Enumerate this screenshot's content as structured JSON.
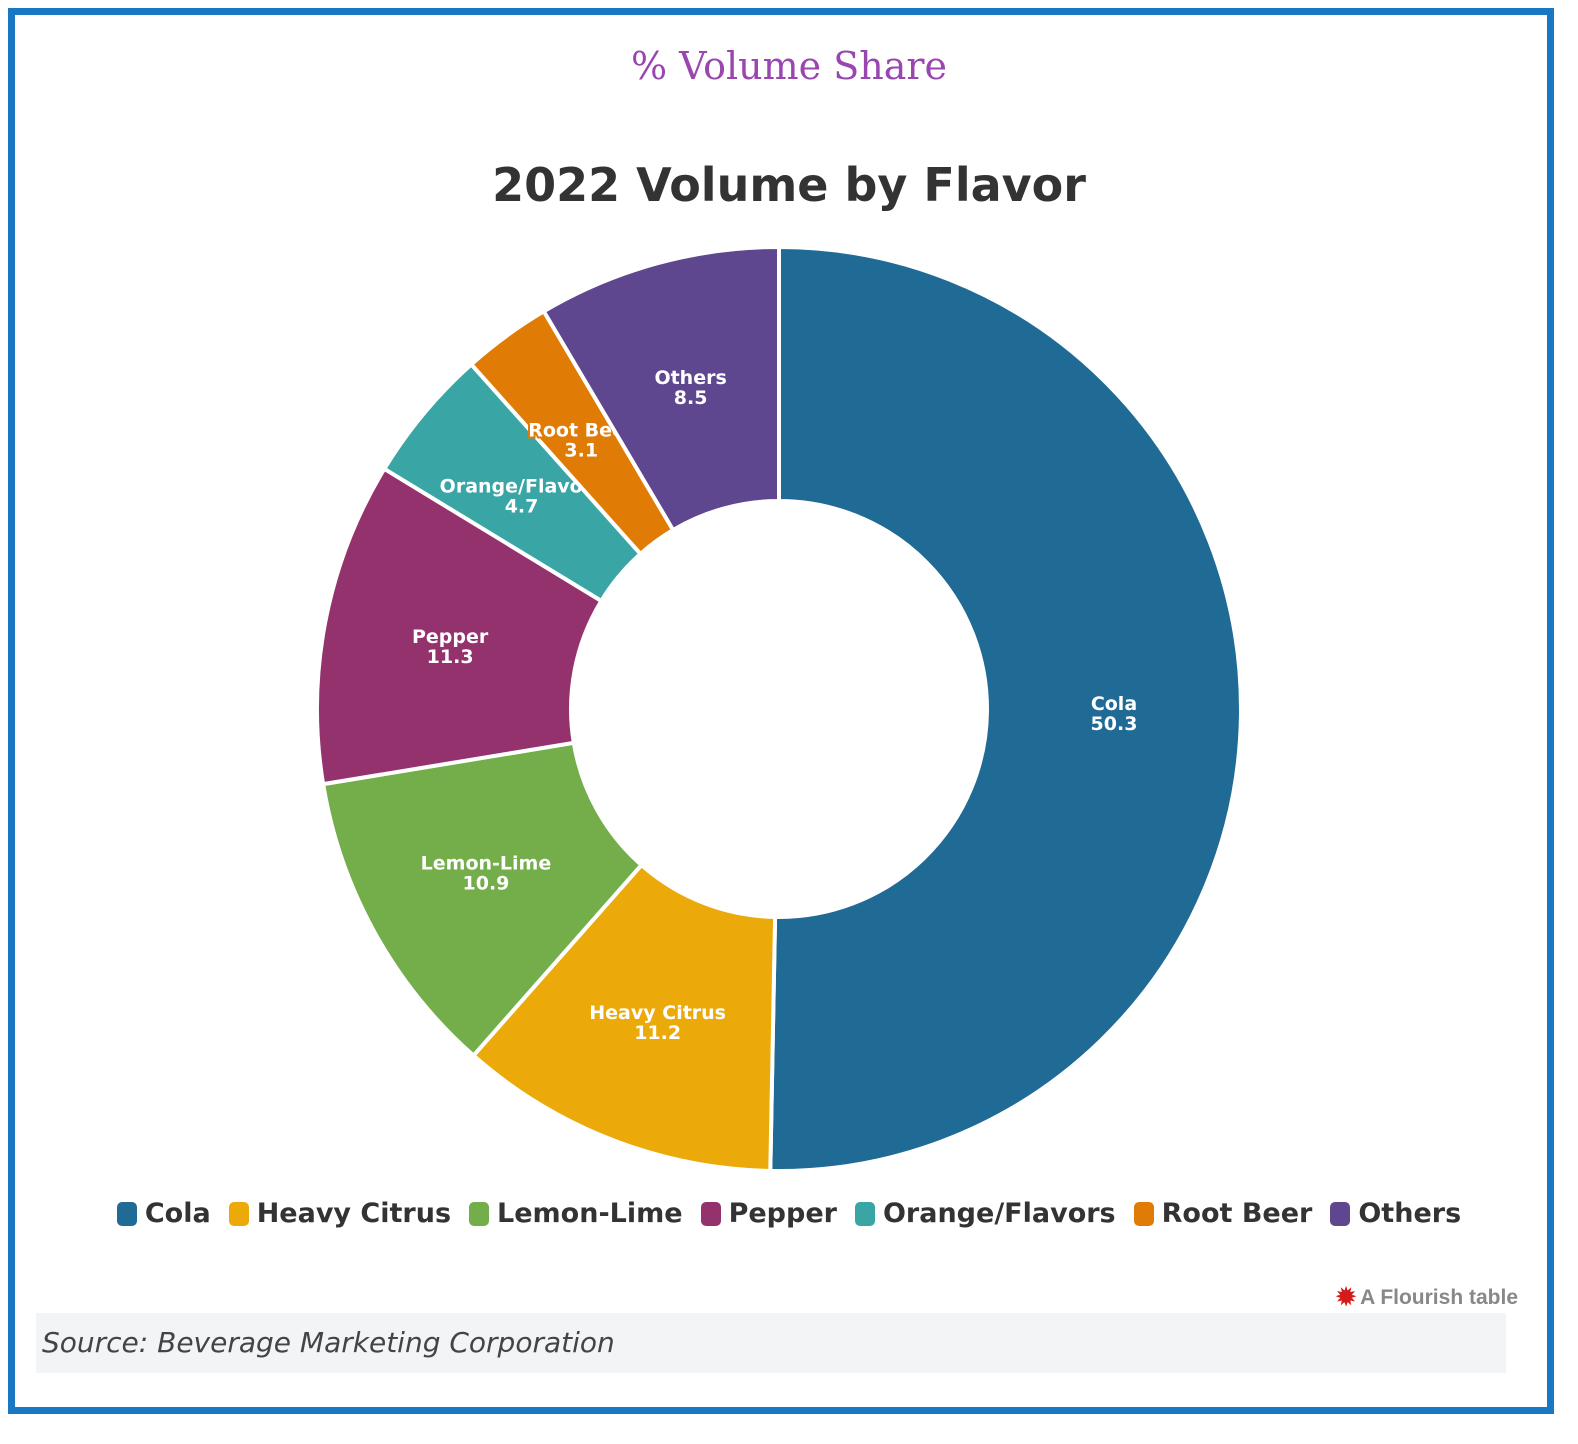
{
  "header": {
    "eyebrow": "% Volume Share",
    "title": "2022 Volume by Flavor"
  },
  "chart_data": {
    "type": "pie",
    "style": "donut",
    "title": "2022 Volume by Flavor",
    "categories": [
      "Cola",
      "Heavy Citrus",
      "Lemon-Lime",
      "Pepper",
      "Orange/Flavors",
      "Root Beer",
      "Others"
    ],
    "values": [
      50.3,
      11.2,
      10.9,
      11.3,
      4.7,
      3.1,
      8.5
    ],
    "colors": [
      "#206a96",
      "#ebaa0a",
      "#74ae4b",
      "#94326d",
      "#3aa5a5",
      "#e07c05",
      "#5f478f"
    ],
    "legend_position": "bottom",
    "data_labels": true
  },
  "footer": {
    "credit": "A Flourish table",
    "source": "Source: Beverage Marketing Corporation"
  }
}
